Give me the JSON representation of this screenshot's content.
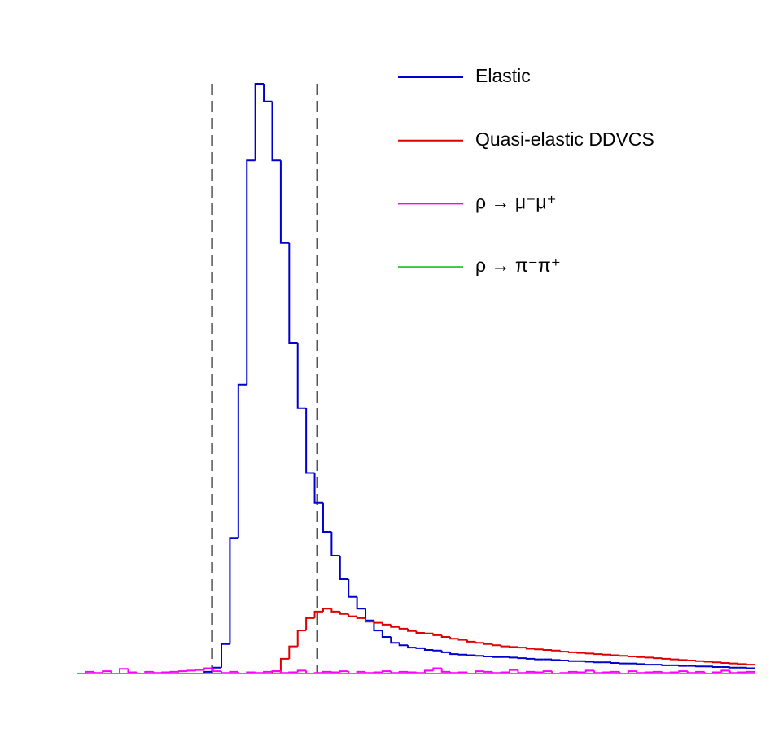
{
  "chart_data": {
    "type": "histogram",
    "bins": [
      0,
      1,
      2,
      3,
      4,
      5,
      6,
      7,
      8,
      9,
      10,
      11,
      12,
      13,
      14,
      15,
      16,
      17,
      18,
      19,
      20,
      21,
      22,
      23,
      24,
      25,
      26,
      27,
      28,
      29,
      30,
      31,
      32,
      33,
      34,
      35,
      36,
      37,
      38,
      39,
      40,
      41,
      42,
      43,
      44,
      45,
      46,
      47,
      48,
      49,
      50,
      51,
      52,
      53,
      54,
      55,
      56,
      57,
      58,
      59,
      60,
      61,
      62,
      63,
      64,
      65,
      66,
      67,
      68,
      69,
      70,
      71,
      72,
      73,
      74,
      75,
      76,
      77,
      78,
      79,
      80
    ],
    "xlim": [
      0,
      80
    ],
    "ylim": [
      0,
      100
    ],
    "cut_lines": [
      15.9,
      28.3
    ],
    "series": [
      {
        "name": "Elastic",
        "color": "#0000cc",
        "values": [
          0,
          0,
          0,
          0,
          0,
          0,
          0,
          0,
          0,
          0,
          0,
          0,
          0,
          0,
          0,
          0.3,
          1,
          5,
          23,
          49,
          87,
          100,
          97,
          87,
          73,
          56,
          45,
          34,
          29,
          24,
          20,
          16,
          13,
          11,
          9,
          7.3,
          6.2,
          5.2,
          4.8,
          4.4,
          4.3,
          4,
          3.9,
          3.6,
          3.3,
          3.2,
          3.1,
          3,
          2.9,
          2.8,
          2.8,
          2.7,
          2.6,
          2.5,
          2.4,
          2.4,
          2.3,
          2.2,
          2.1,
          2.1,
          2,
          1.9,
          1.9,
          1.8,
          1.7,
          1.7,
          1.6,
          1.5,
          1.5,
          1.4,
          1.4,
          1.3,
          1.3,
          1.2,
          1.2,
          1.1,
          1.1,
          1,
          1,
          0.9
        ]
      },
      {
        "name": "Quasi-elastic DDVCS",
        "color": "#dd0000",
        "values": [
          0,
          0,
          0,
          0,
          0,
          0,
          0,
          0,
          0,
          0,
          0,
          0,
          0,
          0,
          0,
          0,
          0,
          0,
          0,
          0,
          0,
          0,
          0,
          0.4,
          2.5,
          4.6,
          7.3,
          9.4,
          10.5,
          11,
          10.5,
          10.1,
          9.7,
          9.4,
          8.8,
          8.6,
          8.3,
          7.9,
          7.6,
          7.2,
          6.9,
          6.8,
          6.5,
          6.2,
          5.9,
          5.7,
          5.4,
          5.2,
          5,
          4.8,
          4.6,
          4.5,
          4.4,
          4.2,
          4.1,
          4,
          3.9,
          3.7,
          3.6,
          3.5,
          3.4,
          3.3,
          3.2,
          3.1,
          3,
          2.9,
          2.8,
          2.7,
          2.6,
          2.5,
          2.4,
          2.3,
          2.2,
          2.1,
          2,
          1.9,
          1.8,
          1.7,
          1.6,
          1.5
        ]
      },
      {
        "name": "ρ → μ⁻μ⁺",
        "color": "#ff00ff",
        "values": [
          0,
          0.3,
          0.1,
          0.4,
          0,
          0.8,
          0.2,
          0,
          0.3,
          0.1,
          0.2,
          0.3,
          0.4,
          0.5,
          0.6,
          0.9,
          0.4,
          0.1,
          0.3,
          0,
          0.2,
          0.1,
          0.3,
          0.4,
          0.1,
          0.2,
          0.5,
          0,
          0.1,
          0.3,
          0.2,
          0.4,
          0,
          0.3,
          0.1,
          0.2,
          0.4,
          0.1,
          0.3,
          0.2,
          0.1,
          0.5,
          0.9,
          0.3,
          0.1,
          0.2,
          0,
          0.4,
          0.3,
          0.1,
          0.2,
          0.6,
          0.1,
          0.3,
          0.2,
          0.4,
          0,
          0.1,
          0.3,
          0.2,
          0.5,
          0.1,
          0.2,
          0.3,
          0,
          0.4,
          0.1,
          0.2,
          0.3,
          0.1,
          0.2,
          0.4,
          0.1,
          0.3,
          0,
          0.2,
          0.5,
          0.1,
          0.2,
          0.3
        ]
      },
      {
        "name": "ρ → π⁻π⁺",
        "color": "#33cc33",
        "values": [
          0,
          0,
          0,
          0,
          0,
          0,
          0,
          0,
          0,
          0,
          0,
          0,
          0,
          0,
          0,
          0,
          0,
          0,
          0,
          0,
          0,
          0,
          0,
          0,
          0,
          0,
          0,
          0,
          0,
          0,
          0,
          0,
          0,
          0,
          0,
          0,
          0,
          0,
          0,
          0,
          0,
          0,
          0,
          0,
          0,
          0,
          0,
          0,
          0,
          0,
          0,
          0,
          0,
          0,
          0,
          0,
          0,
          0,
          0,
          0,
          0,
          0,
          0,
          0,
          0,
          0,
          0,
          0,
          0,
          0,
          0,
          0,
          0,
          0,
          0,
          0,
          0,
          0,
          0,
          0
        ]
      }
    ],
    "legend": "top-right"
  }
}
